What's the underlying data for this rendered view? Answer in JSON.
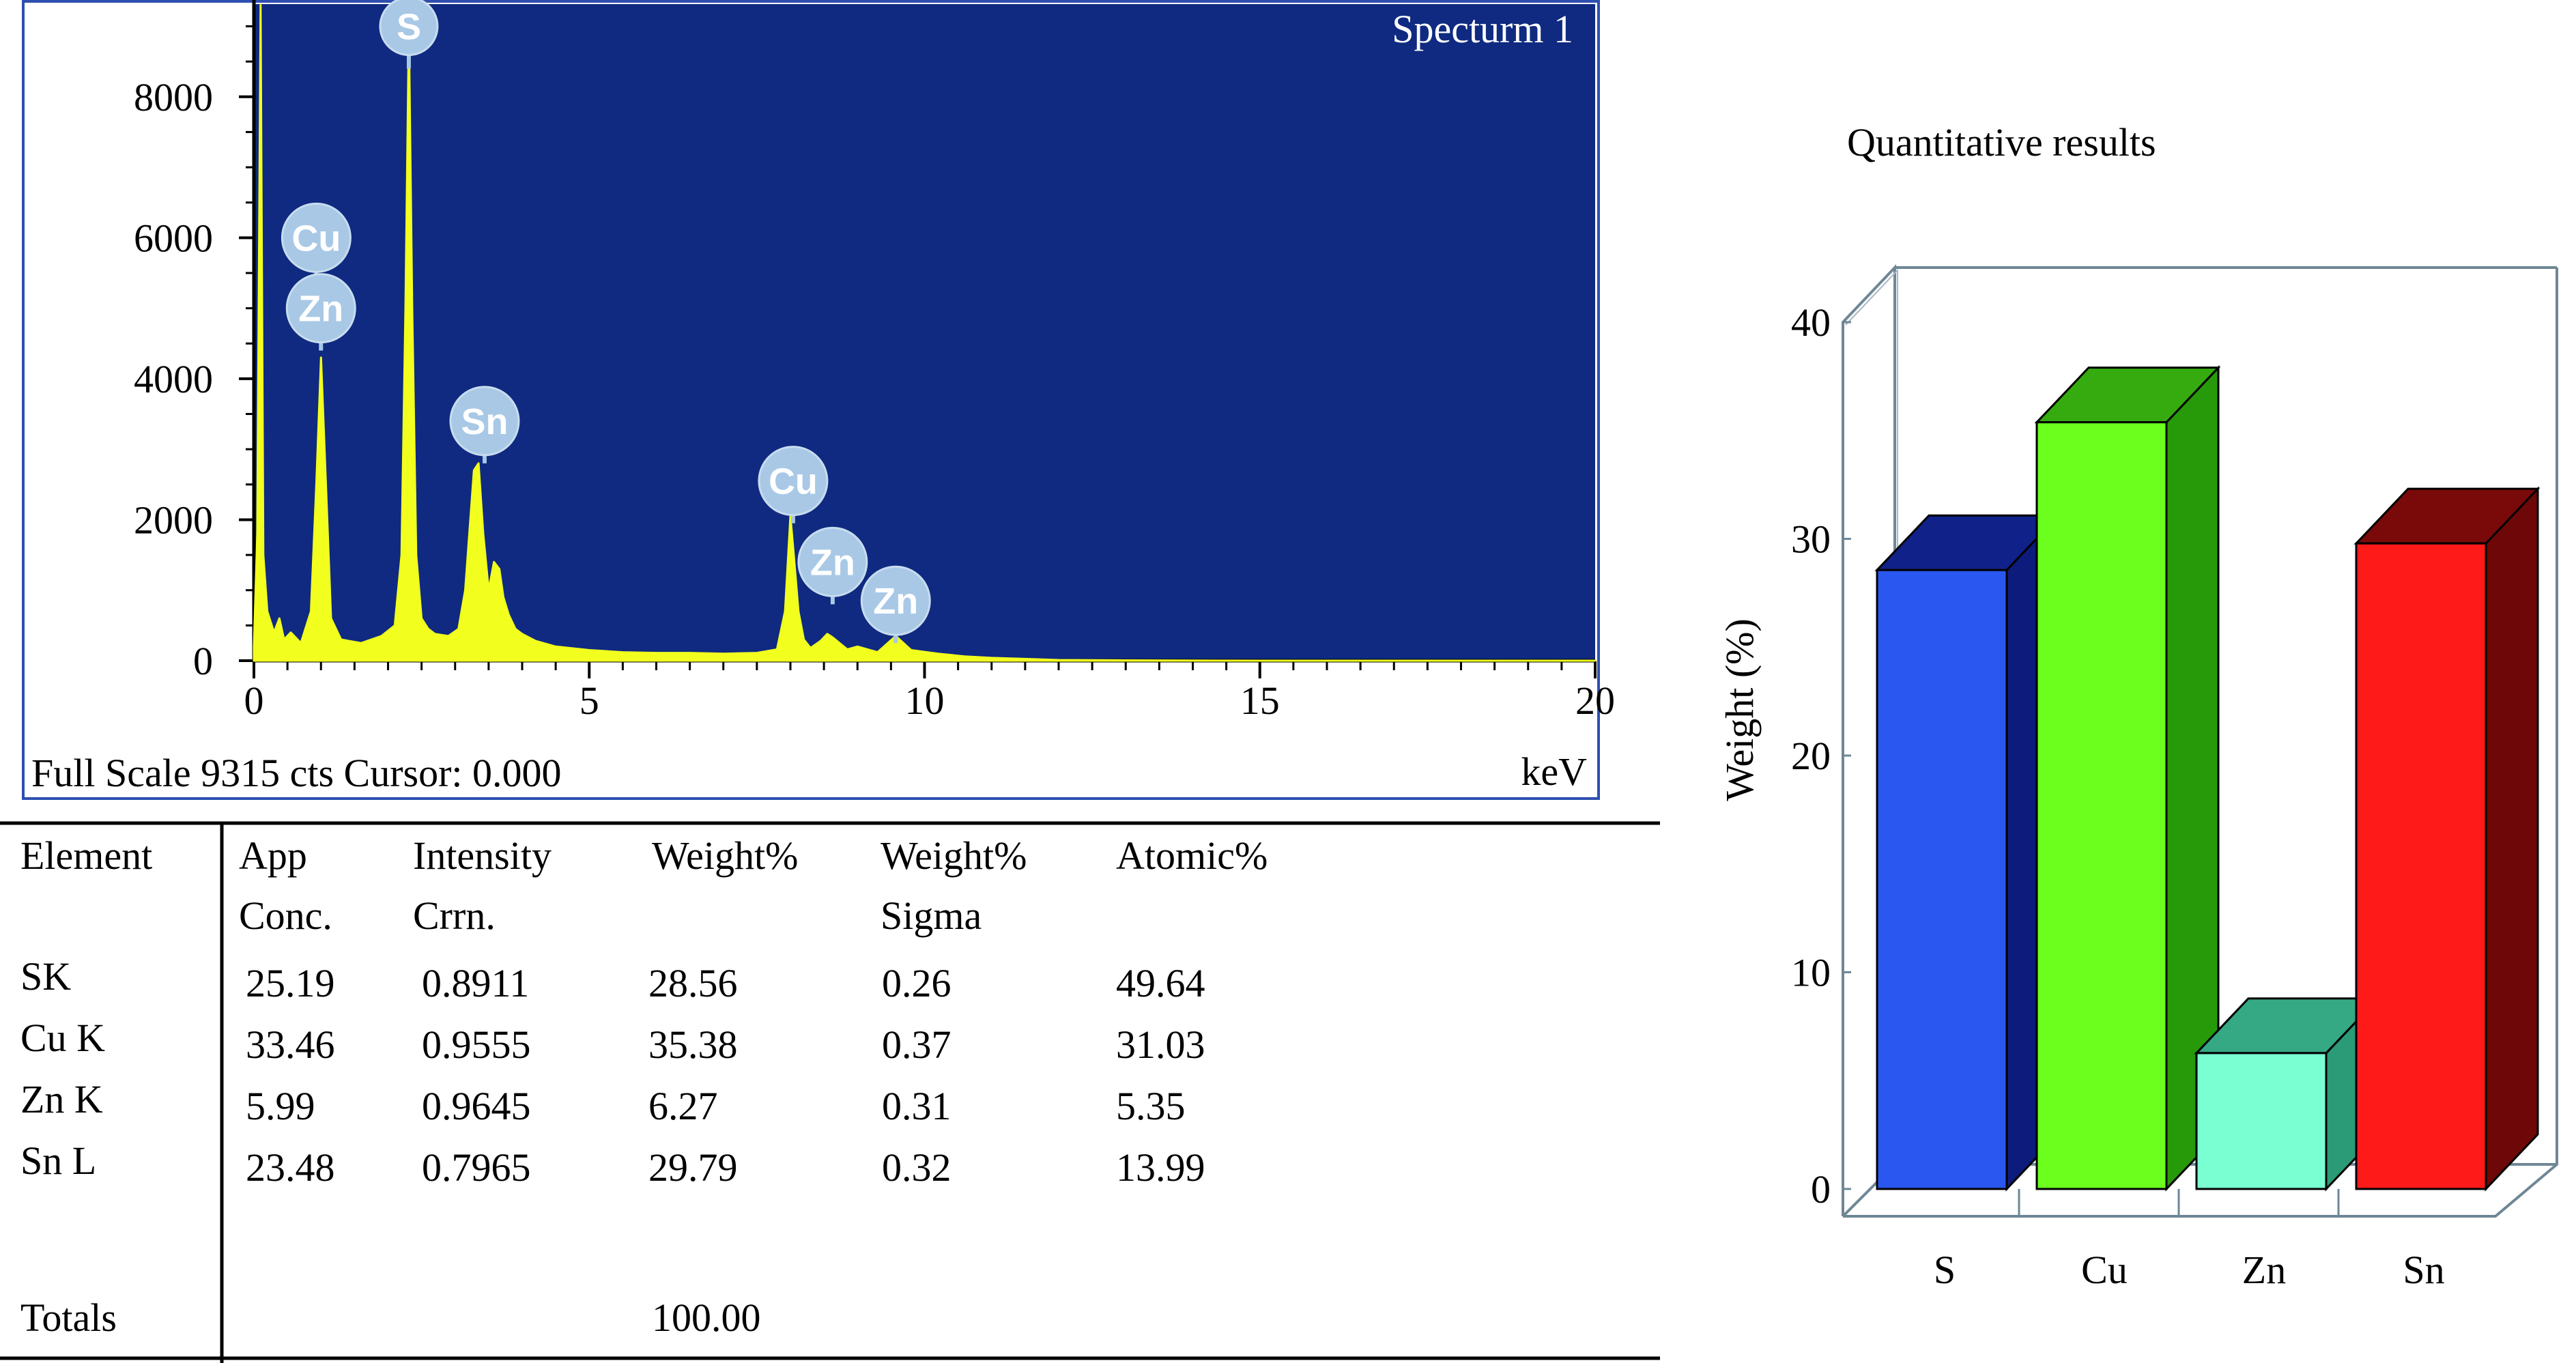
{
  "chart_data": [
    {
      "type": "line",
      "title": "Specturm 1",
      "xlabel": "keV",
      "footer": "Full Scale 9315 cts Cursor: 0.000",
      "xlim": [
        0,
        20
      ],
      "ylim": [
        0,
        9315
      ],
      "x_ticks": [
        "0",
        "5",
        "10",
        "15",
        "20"
      ],
      "y_ticks": [
        "0",
        "2000",
        "4000",
        "6000",
        "8000"
      ],
      "colors": {
        "background": "#0f2a80",
        "spectrum": "#f2ff1e",
        "frame": "#2e4fb0",
        "label": "#a8c8e6"
      },
      "series": [
        {
          "x": [
            0.0,
            0.05,
            0.1,
            0.14,
            0.2,
            0.3,
            0.38,
            0.45,
            0.55,
            0.7,
            0.85,
            0.93,
            1.0,
            1.07,
            1.15,
            1.3,
            1.6,
            1.9,
            2.1,
            2.2,
            2.26,
            2.31,
            2.36,
            2.42,
            2.5,
            2.6,
            2.7,
            2.9,
            3.05,
            3.15,
            3.28,
            3.35,
            3.42,
            3.5,
            3.58,
            3.66,
            3.72,
            3.8,
            3.9,
            4.0,
            4.2,
            4.5,
            5.0,
            5.5,
            6.0,
            6.5,
            7.0,
            7.5,
            7.8,
            7.92,
            8.0,
            8.05,
            8.12,
            8.2,
            8.3,
            8.45,
            8.55,
            8.63,
            8.72,
            8.85,
            9.0,
            9.3,
            9.57,
            9.8,
            10.2,
            10.6,
            11.0,
            11.5,
            12.0,
            13.0,
            15.0,
            17.0,
            20.0
          ],
          "values": [
            200,
            1800,
            9300,
            1500,
            700,
            400,
            600,
            300,
            400,
            250,
            700,
            2500,
            4300,
            2600,
            600,
            300,
            250,
            350,
            500,
            1500,
            5000,
            9000,
            5000,
            1500,
            600,
            450,
            380,
            350,
            450,
            1000,
            2700,
            2800,
            1800,
            1000,
            1400,
            1300,
            900,
            650,
            450,
            380,
            280,
            200,
            150,
            120,
            110,
            110,
            100,
            110,
            160,
            700,
            2050,
            1500,
            700,
            300,
            180,
            280,
            380,
            330,
            260,
            160,
            200,
            120,
            350,
            150,
            100,
            60,
            40,
            25,
            10,
            5,
            0,
            0,
            0
          ]
        }
      ],
      "peak_labels": [
        {
          "text": "S",
          "x": 2.31,
          "count": 9000
        },
        {
          "text": "Cu",
          "x": 0.93,
          "count": 6000
        },
        {
          "text": "Zn",
          "x": 1.0,
          "count": 5000
        },
        {
          "text": "Sn",
          "x": 3.44,
          "count": 3400
        },
        {
          "text": "Cu",
          "x": 8.04,
          "count": 2550
        },
        {
          "text": "Zn",
          "x": 8.63,
          "count": 1400
        },
        {
          "text": "Zn",
          "x": 9.57,
          "count": 850
        }
      ]
    },
    {
      "type": "table",
      "columns": [
        [
          "Element",
          ""
        ],
        [
          "App",
          "Conc."
        ],
        [
          "Intensity",
          "Crrn."
        ],
        [
          "Weight%",
          ""
        ],
        [
          "Weight%",
          "Sigma"
        ],
        [
          "Atomic%",
          ""
        ]
      ],
      "rows": [
        [
          "SK",
          "25.19",
          "0.8911",
          "28.56",
          "0.26",
          "49.64"
        ],
        [
          "Cu K",
          "33.46",
          "0.9555",
          "35.38",
          "0.37",
          "31.03"
        ],
        [
          "Zn K",
          "5.99",
          "0.9645",
          "6.27",
          "0.31",
          "5.35"
        ],
        [
          "Sn L",
          "23.48",
          "0.7965",
          "29.79",
          "0.32",
          "13.99"
        ]
      ],
      "totals": {
        "label": "Totals",
        "weight": "100.00"
      }
    },
    {
      "type": "bar",
      "title": "Quantitative results",
      "xlabel": "",
      "ylabel": "Weight (%)",
      "ylim": [
        0,
        40
      ],
      "y_ticks": [
        "0",
        "10",
        "20",
        "30",
        "40"
      ],
      "categories": [
        "S",
        "Cu",
        "Zn",
        "Sn"
      ],
      "values": [
        28.56,
        35.38,
        6.27,
        29.79
      ],
      "colors": [
        {
          "front": "#2957f0",
          "side": "#0c1b7c",
          "top": "#102289"
        },
        {
          "front": "#6cff1e",
          "side": "#279a0a",
          "top": "#35ab10"
        },
        {
          "front": "#7affd2",
          "side": "#2b9a77",
          "top": "#35a884"
        },
        {
          "front": "#ff1a1a",
          "side": "#6e0808",
          "top": "#7a0a0a"
        }
      ]
    }
  ]
}
